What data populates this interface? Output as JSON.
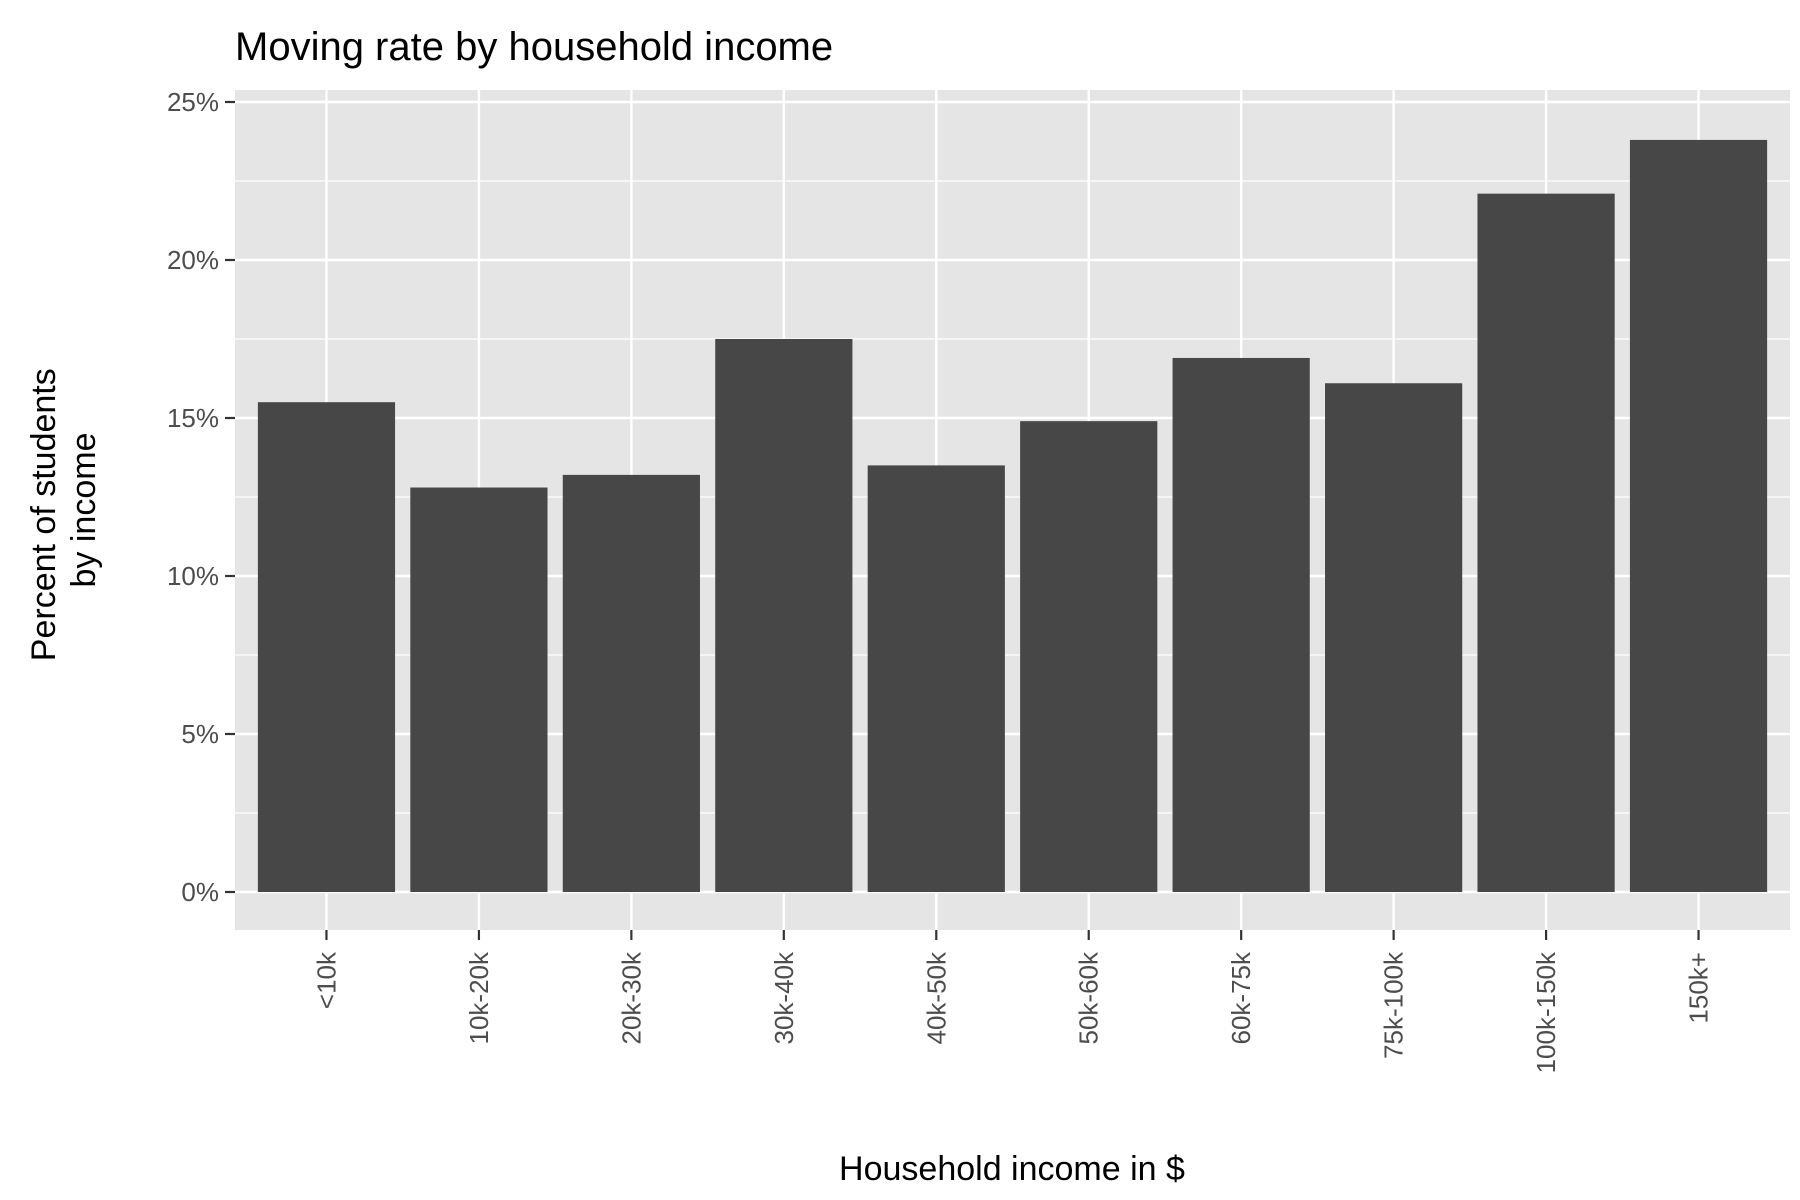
{
  "chart_data": {
    "type": "bar",
    "title": "Moving rate by household income",
    "xlabel": "Household income in $",
    "ylabel": [
      "Percent of students",
      "by income"
    ],
    "categories": [
      "<10k",
      "10k-20k",
      "20k-30k",
      "30k-40k",
      "40k-50k",
      "50k-60k",
      "60k-75k",
      "75k-100k",
      "100k-150k",
      "150k+"
    ],
    "values": [
      15.5,
      12.8,
      13.2,
      17.5,
      13.5,
      14.9,
      16.9,
      16.1,
      22.1,
      23.8
    ],
    "ylim": [
      0,
      25
    ],
    "yticks": [
      {
        "value": 0,
        "label": "0%"
      },
      {
        "value": 5,
        "label": "5%"
      },
      {
        "value": 10,
        "label": "10%"
      },
      {
        "value": 15,
        "label": "15%"
      },
      {
        "value": 20,
        "label": "20%"
      },
      {
        "value": 25,
        "label": "25%"
      }
    ],
    "grid": true,
    "colors": {
      "bar": "#474747",
      "panel": "#e5e5e5",
      "grid": "#ffffff",
      "tick_text": "#4d4d4d",
      "tick_mark": "#333333"
    }
  }
}
